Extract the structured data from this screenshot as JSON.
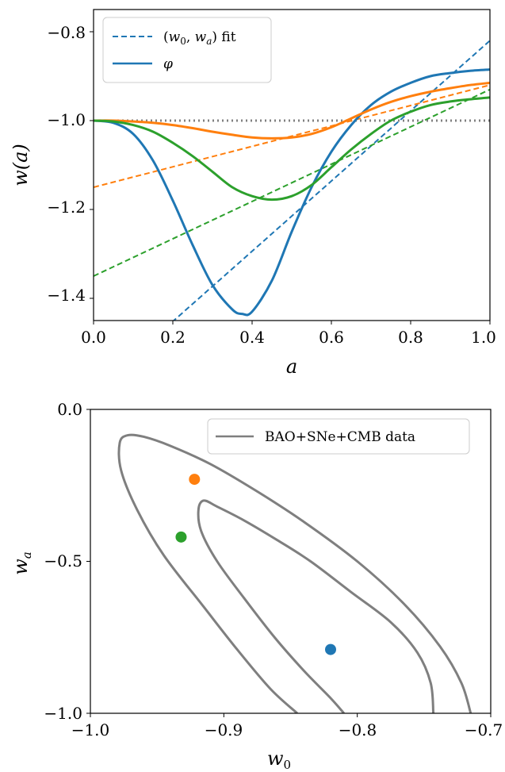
{
  "colors": {
    "blue": "#1f77b4",
    "orange": "#ff7f0e",
    "green": "#2ca02c",
    "gray": "#7f7f7f",
    "reference": "#808080"
  },
  "chart_data": [
    {
      "type": "line",
      "xlabel": "a",
      "ylabel": "w(a)",
      "xlim": [
        0.0,
        1.0
      ],
      "ylim": [
        -1.45,
        -0.75
      ],
      "xticks": [
        "0.0",
        "0.2",
        "0.4",
        "0.6",
        "0.8",
        "1.0"
      ],
      "yticks": [
        "−0.8",
        "−1.0",
        "−1.2",
        "−1.4"
      ],
      "reference_line": {
        "y": -1.0,
        "style": "dotted"
      },
      "legend": {
        "placement": "top-left",
        "entries": [
          {
            "label": "(w0, wa) fit",
            "style": "dashed"
          },
          {
            "label": "φ",
            "style": "solid"
          }
        ]
      },
      "series": [
        {
          "color": "blue",
          "phi_curve": {
            "x": [
              0.0,
              0.05,
              0.1,
              0.15,
              0.2,
              0.25,
              0.3,
              0.35,
              0.375,
              0.4,
              0.45,
              0.5,
              0.55,
              0.6,
              0.65,
              0.7,
              0.75,
              0.8,
              0.85,
              0.9,
              0.95,
              1.0
            ],
            "y": [
              -1.0,
              -1.005,
              -1.03,
              -1.09,
              -1.18,
              -1.28,
              -1.37,
              -1.425,
              -1.435,
              -1.43,
              -1.36,
              -1.25,
              -1.15,
              -1.07,
              -1.01,
              -0.965,
              -0.935,
              -0.915,
              -0.9,
              -0.893,
              -0.888,
              -0.885
            ]
          },
          "fit_line": {
            "w0": -0.82,
            "wa": -0.79
          }
        },
        {
          "color": "orange",
          "phi_curve": {
            "x": [
              0.0,
              0.05,
              0.1,
              0.15,
              0.2,
              0.25,
              0.3,
              0.35,
              0.4,
              0.45,
              0.5,
              0.55,
              0.6,
              0.65,
              0.7,
              0.75,
              0.8,
              0.85,
              0.9,
              0.95,
              1.0
            ],
            "y": [
              -1.0,
              -1.0,
              -1.002,
              -1.005,
              -1.01,
              -1.017,
              -1.025,
              -1.032,
              -1.038,
              -1.04,
              -1.038,
              -1.03,
              -1.015,
              -0.995,
              -0.975,
              -0.958,
              -0.945,
              -0.935,
              -0.927,
              -0.92,
              -0.915
            ]
          },
          "fit_line": {
            "w0": -0.92,
            "wa": -0.23
          }
        },
        {
          "color": "green",
          "phi_curve": {
            "x": [
              0.0,
              0.05,
              0.1,
              0.15,
              0.2,
              0.25,
              0.3,
              0.35,
              0.4,
              0.45,
              0.5,
              0.55,
              0.6,
              0.65,
              0.7,
              0.75,
              0.8,
              0.85,
              0.9,
              0.95,
              1.0
            ],
            "y": [
              -1.0,
              -1.002,
              -1.01,
              -1.025,
              -1.05,
              -1.08,
              -1.115,
              -1.15,
              -1.17,
              -1.178,
              -1.17,
              -1.145,
              -1.105,
              -1.065,
              -1.03,
              -1.0,
              -0.98,
              -0.965,
              -0.957,
              -0.952,
              -0.948
            ]
          },
          "fit_line": {
            "w0": -0.93,
            "wa": -0.42
          }
        }
      ]
    },
    {
      "type": "scatter",
      "xlabel": "w0",
      "ylabel": "wa",
      "xlim": [
        -1.0,
        -0.7
      ],
      "ylim": [
        -1.0,
        0.0
      ],
      "xticks": [
        "−1.0",
        "−0.9",
        "−0.8",
        "−0.7"
      ],
      "yticks": [
        "0.0",
        "−0.5",
        "−1.0"
      ],
      "legend": {
        "placement": "top-right",
        "entries": [
          {
            "label": "BAO+SNe+CMB data",
            "style": "solid"
          }
        ]
      },
      "points": [
        {
          "w0": -0.82,
          "wa": -0.79,
          "color": "blue"
        },
        {
          "w0": -0.922,
          "wa": -0.23,
          "color": "orange"
        },
        {
          "w0": -0.932,
          "wa": -0.42,
          "color": "green"
        }
      ],
      "contours": [
        {
          "color": "gray",
          "w0": [
            -0.743,
            -0.745,
            -0.755,
            -0.775,
            -0.805,
            -0.835,
            -0.86,
            -0.885,
            -0.905,
            -0.915,
            -0.919,
            -0.917,
            -0.905,
            -0.885,
            -0.862,
            -0.84,
            -0.82,
            -0.81
          ],
          "wa": [
            -1.0,
            -0.9,
            -0.8,
            -0.7,
            -0.6,
            -0.5,
            -0.43,
            -0.365,
            -0.32,
            -0.3,
            -0.33,
            -0.4,
            -0.5,
            -0.62,
            -0.75,
            -0.86,
            -0.95,
            -1.0
          ]
        },
        {
          "color": "gray",
          "w0": [
            -0.715,
            -0.722,
            -0.738,
            -0.765,
            -0.8,
            -0.84,
            -0.875,
            -0.91,
            -0.94,
            -0.96,
            -0.972,
            -0.978,
            -0.977,
            -0.965,
            -0.945,
            -0.915,
            -0.89,
            -0.865,
            -0.845
          ],
          "wa": [
            -1.0,
            -0.9,
            -0.78,
            -0.64,
            -0.5,
            -0.37,
            -0.27,
            -0.18,
            -0.12,
            -0.09,
            -0.085,
            -0.11,
            -0.2,
            -0.33,
            -0.48,
            -0.65,
            -0.79,
            -0.92,
            -1.0
          ]
        }
      ]
    }
  ]
}
